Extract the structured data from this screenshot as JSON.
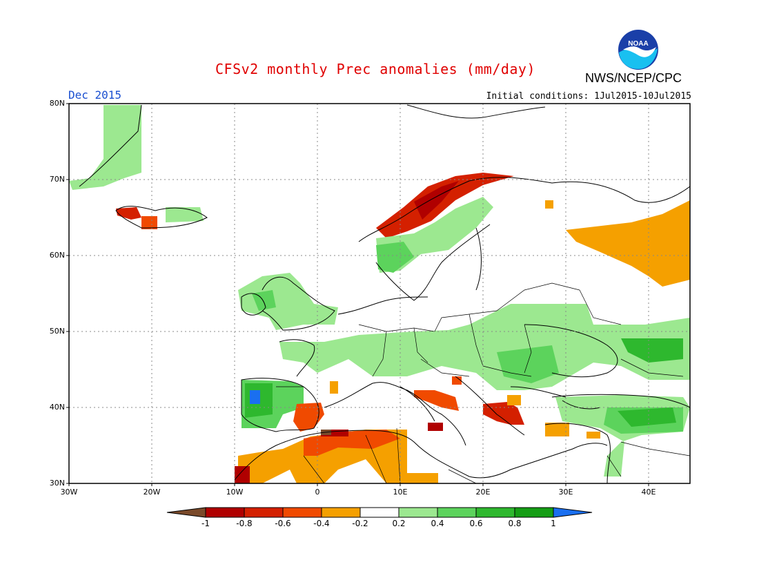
{
  "header": {
    "title": "CFSv2 monthly Prec anomalies (mm/day)",
    "organization": "NWS/NCEP/CPC",
    "logo_text": "NOAA",
    "month_label": "Dec 2015",
    "initial_conditions": "Initial conditions: 1Jul2015-10Jul2015"
  },
  "axes": {
    "lat_labels": [
      "80N",
      "70N",
      "60N",
      "50N",
      "40N",
      "30N"
    ],
    "lon_labels": [
      "30W",
      "20W",
      "10W",
      "0",
      "10E",
      "20E",
      "30E",
      "40E"
    ]
  },
  "colorbar": {
    "labels": [
      "-1",
      "-0.8",
      "-0.6",
      "-0.4",
      "-0.2",
      "0.2",
      "0.4",
      "0.6",
      "0.8",
      "1"
    ],
    "colors": [
      "#7a4a2a",
      "#b00000",
      "#d42000",
      "#f04a00",
      "#f5a000",
      "#ffffff",
      "#9ce890",
      "#5cd35c",
      "#2eb82e",
      "#159e15",
      "#1a6ff0"
    ]
  },
  "chart_data": {
    "type": "heatmap",
    "title": "CFSv2 monthly Prec anomalies (mm/day)",
    "lat_range": [
      30,
      80
    ],
    "lon_range": [
      -30,
      45
    ],
    "grid": "dotted",
    "units": "mm/day"
  }
}
